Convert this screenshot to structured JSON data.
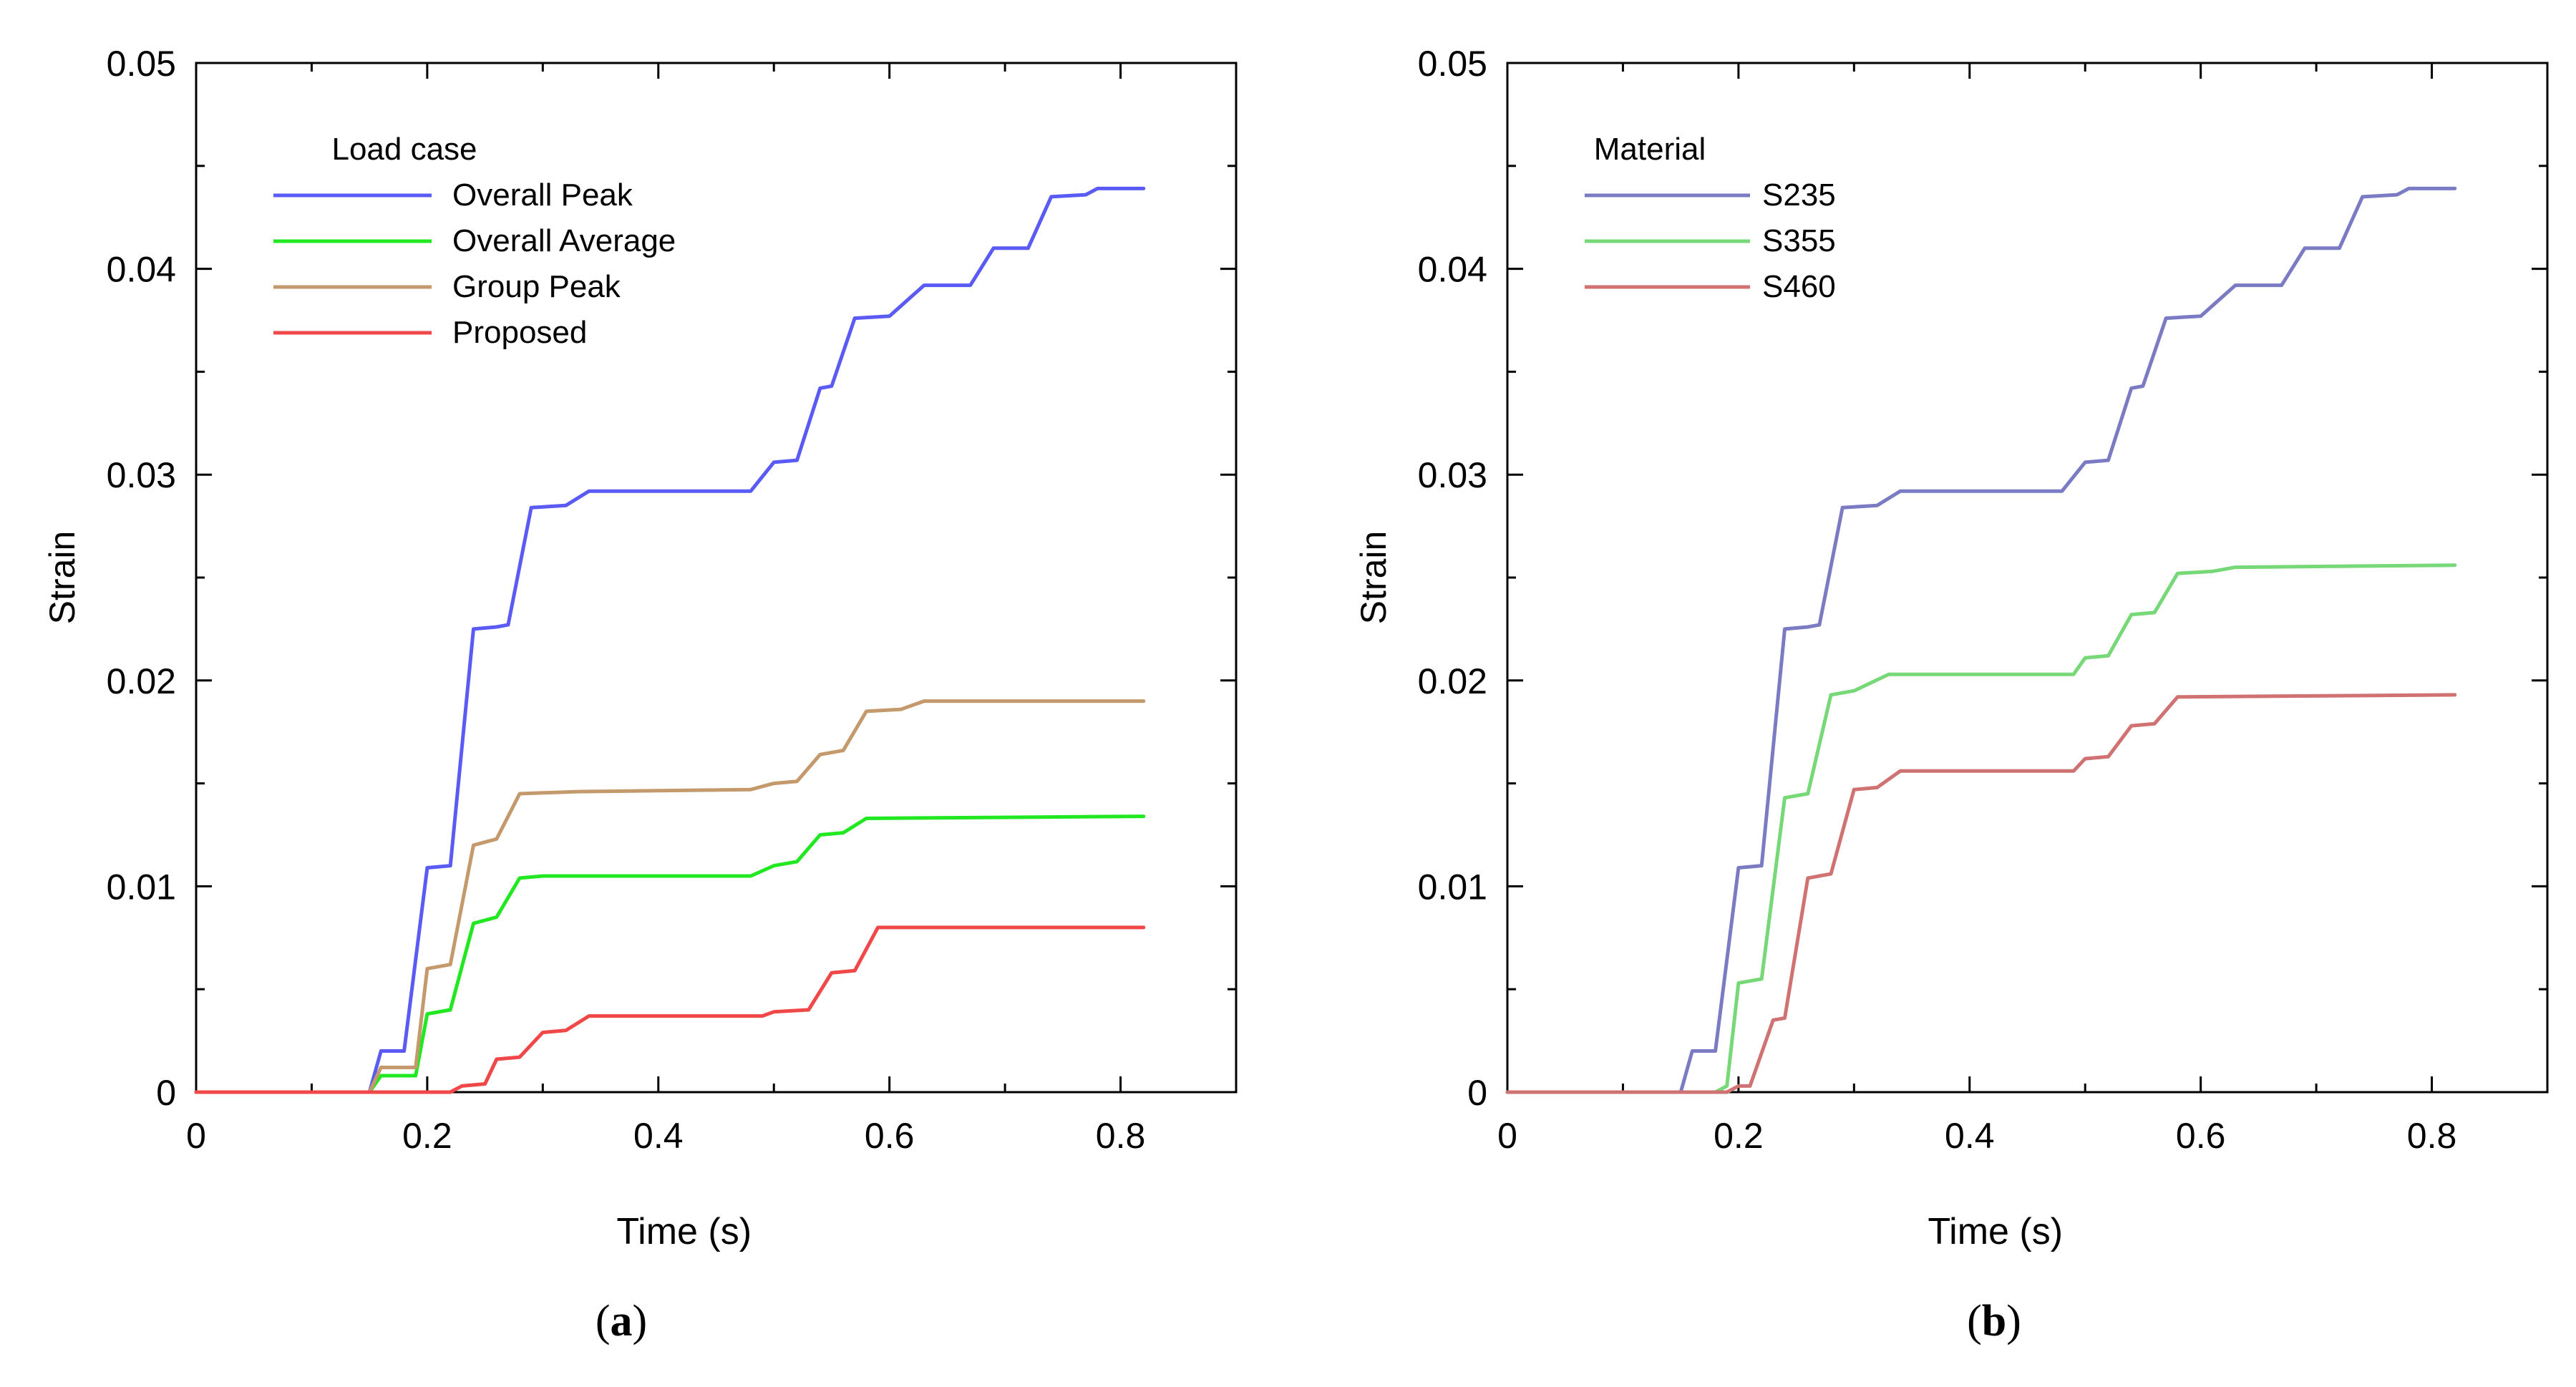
{
  "chart_data": [
    {
      "type": "line",
      "panel_label": "a",
      "xlabel": "Time (s)",
      "ylabel": "Strain",
      "xlim": [
        0,
        0.9
      ],
      "ylim": [
        0,
        0.05
      ],
      "xticks": [
        "0",
        "0.2",
        "0.4",
        "0.6",
        "0.8"
      ],
      "yticks": [
        "0",
        "0.01",
        "0.02",
        "0.03",
        "0.04",
        "0.05"
      ],
      "legend": {
        "title": "Load case",
        "position": "top-left"
      },
      "grid": false,
      "series": [
        {
          "name": "Overall Peak",
          "color": "#5a5af5",
          "points": [
            [
              0,
              0
            ],
            [
              0.15,
              0
            ],
            [
              0.16,
              0.002
            ],
            [
              0.18,
              0.002
            ],
            [
              0.2,
              0.0109
            ],
            [
              0.22,
              0.011
            ],
            [
              0.24,
              0.0225
            ],
            [
              0.26,
              0.0226
            ],
            [
              0.27,
              0.0227
            ],
            [
              0.29,
              0.0284
            ],
            [
              0.32,
              0.0285
            ],
            [
              0.34,
              0.0292
            ],
            [
              0.48,
              0.0292
            ],
            [
              0.5,
              0.0306
            ],
            [
              0.52,
              0.0307
            ],
            [
              0.54,
              0.0342
            ],
            [
              0.55,
              0.0343
            ],
            [
              0.57,
              0.0376
            ],
            [
              0.6,
              0.0377
            ],
            [
              0.63,
              0.0392
            ],
            [
              0.67,
              0.0392
            ],
            [
              0.69,
              0.041
            ],
            [
              0.72,
              0.041
            ],
            [
              0.74,
              0.0435
            ],
            [
              0.77,
              0.0436
            ],
            [
              0.78,
              0.0439
            ],
            [
              0.82,
              0.0439
            ]
          ]
        },
        {
          "name": "Overall Average",
          "color": "#22e822",
          "points": [
            [
              0,
              0
            ],
            [
              0.15,
              0
            ],
            [
              0.16,
              0.0008
            ],
            [
              0.19,
              0.0008
            ],
            [
              0.2,
              0.0038
            ],
            [
              0.22,
              0.004
            ],
            [
              0.24,
              0.0082
            ],
            [
              0.26,
              0.0085
            ],
            [
              0.28,
              0.0104
            ],
            [
              0.3,
              0.0105
            ],
            [
              0.48,
              0.0105
            ],
            [
              0.5,
              0.011
            ],
            [
              0.52,
              0.0112
            ],
            [
              0.54,
              0.0125
            ],
            [
              0.56,
              0.0126
            ],
            [
              0.58,
              0.0133
            ],
            [
              0.82,
              0.0134
            ]
          ]
        },
        {
          "name": "Group Peak",
          "color": "#c49a6c",
          "points": [
            [
              0,
              0
            ],
            [
              0.15,
              0
            ],
            [
              0.16,
              0.0012
            ],
            [
              0.19,
              0.0012
            ],
            [
              0.2,
              0.006
            ],
            [
              0.22,
              0.0062
            ],
            [
              0.24,
              0.012
            ],
            [
              0.26,
              0.0123
            ],
            [
              0.28,
              0.0145
            ],
            [
              0.33,
              0.0146
            ],
            [
              0.48,
              0.0147
            ],
            [
              0.5,
              0.015
            ],
            [
              0.52,
              0.0151
            ],
            [
              0.54,
              0.0164
            ],
            [
              0.56,
              0.0166
            ],
            [
              0.58,
              0.0185
            ],
            [
              0.61,
              0.0186
            ],
            [
              0.63,
              0.019
            ],
            [
              0.82,
              0.019
            ]
          ]
        },
        {
          "name": "Proposed",
          "color": "#f04848",
          "points": [
            [
              0,
              0
            ],
            [
              0.22,
              0
            ],
            [
              0.23,
              0.0003
            ],
            [
              0.25,
              0.0004
            ],
            [
              0.26,
              0.0016
            ],
            [
              0.28,
              0.0017
            ],
            [
              0.3,
              0.0029
            ],
            [
              0.32,
              0.003
            ],
            [
              0.34,
              0.0037
            ],
            [
              0.49,
              0.0037
            ],
            [
              0.5,
              0.0039
            ],
            [
              0.53,
              0.004
            ],
            [
              0.55,
              0.0058
            ],
            [
              0.57,
              0.0059
            ],
            [
              0.59,
              0.008
            ],
            [
              0.82,
              0.008
            ]
          ]
        }
      ]
    },
    {
      "type": "line",
      "panel_label": "b",
      "xlabel": "Time (s)",
      "ylabel": "Strain",
      "xlim": [
        0,
        0.9
      ],
      "ylim": [
        0,
        0.05
      ],
      "xticks": [
        "0",
        "0.2",
        "0.4",
        "0.6",
        "0.8"
      ],
      "yticks": [
        "0",
        "0.01",
        "0.02",
        "0.03",
        "0.04",
        "0.05"
      ],
      "legend": {
        "title": "Material",
        "position": "top-left"
      },
      "grid": false,
      "series": [
        {
          "name": "S235",
          "color": "#7b7bc4",
          "points": [
            [
              0,
              0
            ],
            [
              0.15,
              0
            ],
            [
              0.16,
              0.002
            ],
            [
              0.18,
              0.002
            ],
            [
              0.2,
              0.0109
            ],
            [
              0.22,
              0.011
            ],
            [
              0.24,
              0.0225
            ],
            [
              0.26,
              0.0226
            ],
            [
              0.27,
              0.0227
            ],
            [
              0.29,
              0.0284
            ],
            [
              0.32,
              0.0285
            ],
            [
              0.34,
              0.0292
            ],
            [
              0.48,
              0.0292
            ],
            [
              0.5,
              0.0306
            ],
            [
              0.52,
              0.0307
            ],
            [
              0.54,
              0.0342
            ],
            [
              0.55,
              0.0343
            ],
            [
              0.57,
              0.0376
            ],
            [
              0.6,
              0.0377
            ],
            [
              0.63,
              0.0392
            ],
            [
              0.67,
              0.0392
            ],
            [
              0.69,
              0.041
            ],
            [
              0.72,
              0.041
            ],
            [
              0.74,
              0.0435
            ],
            [
              0.77,
              0.0436
            ],
            [
              0.78,
              0.0439
            ],
            [
              0.82,
              0.0439
            ]
          ]
        },
        {
          "name": "S355",
          "color": "#76d876",
          "points": [
            [
              0,
              0
            ],
            [
              0.18,
              0
            ],
            [
              0.19,
              0.0003
            ],
            [
              0.2,
              0.0053
            ],
            [
              0.22,
              0.0055
            ],
            [
              0.24,
              0.0143
            ],
            [
              0.26,
              0.0145
            ],
            [
              0.28,
              0.0193
            ],
            [
              0.3,
              0.0195
            ],
            [
              0.33,
              0.0203
            ],
            [
              0.49,
              0.0203
            ],
            [
              0.5,
              0.0211
            ],
            [
              0.52,
              0.0212
            ],
            [
              0.54,
              0.0232
            ],
            [
              0.56,
              0.0233
            ],
            [
              0.58,
              0.0252
            ],
            [
              0.61,
              0.0253
            ],
            [
              0.63,
              0.0255
            ],
            [
              0.82,
              0.0256
            ]
          ]
        },
        {
          "name": "S460",
          "color": "#d07272",
          "points": [
            [
              0,
              0
            ],
            [
              0.19,
              0
            ],
            [
              0.2,
              0.0003
            ],
            [
              0.21,
              0.0003
            ],
            [
              0.23,
              0.0035
            ],
            [
              0.24,
              0.0036
            ],
            [
              0.26,
              0.0104
            ],
            [
              0.28,
              0.0106
            ],
            [
              0.3,
              0.0147
            ],
            [
              0.32,
              0.0148
            ],
            [
              0.34,
              0.0156
            ],
            [
              0.49,
              0.0156
            ],
            [
              0.5,
              0.0162
            ],
            [
              0.52,
              0.0163
            ],
            [
              0.54,
              0.0178
            ],
            [
              0.56,
              0.0179
            ],
            [
              0.58,
              0.0192
            ],
            [
              0.82,
              0.0193
            ]
          ]
        }
      ]
    }
  ]
}
